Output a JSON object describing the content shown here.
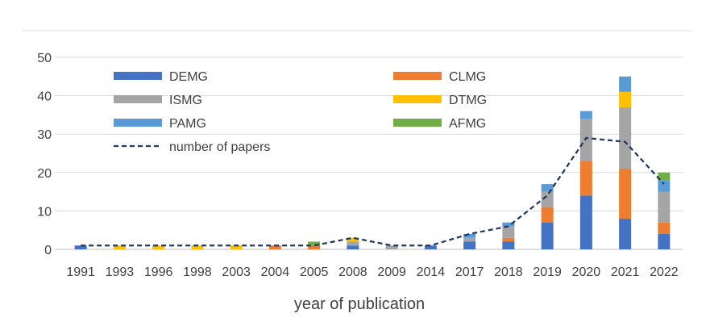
{
  "chart_data": {
    "type": "bar",
    "stacked": true,
    "title": "",
    "xlabel": "year of publication",
    "ylabel": "",
    "ylim": [
      0,
      50
    ],
    "yticks": [
      0,
      10,
      20,
      30,
      40,
      50
    ],
    "grid": "horizontal",
    "legend_position": "inside-top",
    "categories": [
      "1991",
      "1993",
      "1996",
      "1998",
      "2003",
      "2004",
      "2005",
      "2008",
      "2009",
      "2014",
      "2017",
      "2018",
      "2019",
      "2020",
      "2021",
      "2022"
    ],
    "series": [
      {
        "name": "DEMG",
        "color": "#4472C4",
        "values": [
          1,
          0,
          0,
          0,
          0,
          0,
          0,
          1,
          0,
          1,
          2,
          2,
          7,
          14,
          8,
          4
        ]
      },
      {
        "name": "CLMG",
        "color": "#ED7D31",
        "values": [
          0,
          0,
          0,
          0,
          0,
          1,
          1,
          0,
          0,
          0,
          0,
          1,
          4,
          9,
          13,
          3
        ]
      },
      {
        "name": "ISMG",
        "color": "#A5A5A5",
        "values": [
          0,
          0,
          0,
          0,
          0,
          0,
          0,
          1,
          1,
          0,
          1,
          3,
          4,
          11,
          16,
          8
        ]
      },
      {
        "name": "DTMG",
        "color": "#FFC000",
        "values": [
          0,
          1,
          1,
          1,
          1,
          0,
          0,
          1,
          0,
          0,
          0,
          0,
          0,
          0,
          4,
          0
        ]
      },
      {
        "name": "PAMG",
        "color": "#5B9BD5",
        "values": [
          0,
          0,
          0,
          0,
          0,
          0,
          0,
          0,
          0,
          0,
          1,
          1,
          2,
          2,
          4,
          3
        ]
      },
      {
        "name": "AFMG",
        "color": "#70AD47",
        "values": [
          0,
          0,
          0,
          0,
          0,
          0,
          1,
          0,
          0,
          0,
          0,
          0,
          0,
          0,
          0,
          2
        ]
      }
    ],
    "line_series": {
      "name": "number of papers",
      "color": "#203864",
      "style": "dashed",
      "values": [
        1,
        1,
        1,
        1,
        1,
        1,
        1,
        3,
        1,
        1,
        4,
        6,
        14,
        29,
        28,
        17
      ]
    }
  }
}
